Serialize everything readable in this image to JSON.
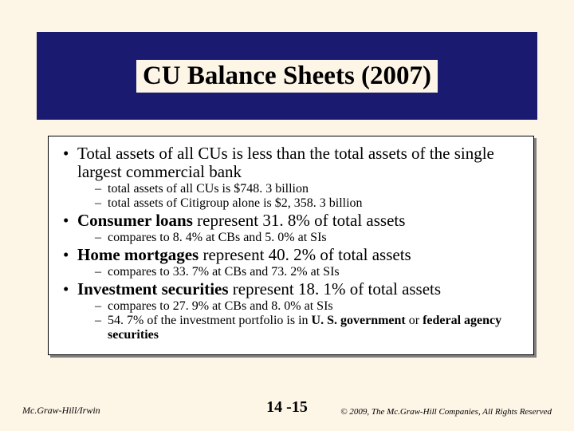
{
  "title": "CU Balance Sheets (2007)",
  "bullets": [
    {
      "text": "Total assets of all CUs is less than the total assets of the single largest commercial bank",
      "sub": [
        "total assets of all CUs is $748. 3 billion",
        "total assets of Citigroup alone is $2, 358. 3 billion"
      ]
    },
    {
      "text_html": "<b>Consumer loans</b> represent 31. 8% of total assets",
      "sub": [
        "compares to 8. 4% at CBs and 5. 0% at SIs"
      ]
    },
    {
      "text_html": "<b>Home mortgages</b> represent 40. 2% of total assets",
      "sub": [
        "compares to 33. 7% at CBs and 73. 2% at SIs"
      ]
    },
    {
      "text_html": "<b>Investment securities</b> represent 18. 1% of total assets",
      "sub": [
        "compares to 27. 9% at CBs and 8. 0% at SIs",
        "54. 7% of the investment portfolio is in <b>U. S. government</b> or <b>federal agency securities</b>"
      ]
    }
  ],
  "footer": {
    "left": "Mc.Graw-Hill/Irwin",
    "center": "14 -15",
    "right": "© 2009, The Mc.Graw-Hill Companies, All Rights Reserved"
  },
  "styling": {
    "background_color": "#fdf5e6",
    "title_bar_color": "#1a1a70",
    "content_bg": "#ffffff",
    "shadow_color": "#808080",
    "font_family": "Times New Roman",
    "title_fontsize_pt": 33,
    "bullet_fontsize_pt": 21,
    "sub_fontsize_pt": 16,
    "footer_fontsize_pt": 12,
    "page_number_fontsize_pt": 20
  }
}
